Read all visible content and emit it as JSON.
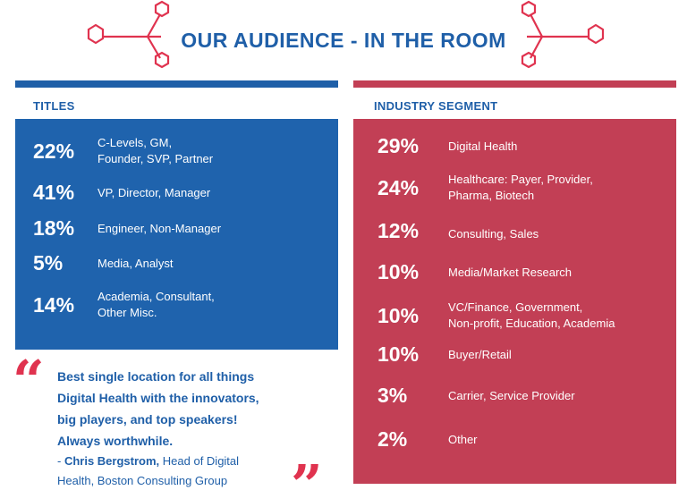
{
  "header": {
    "title": "OUR AUDIENCE - IN THE ROOM"
  },
  "colors": {
    "blue": "#1f63ad",
    "red": "#c23f55",
    "accent": "#e0334f"
  },
  "titles": {
    "label": "TITLES",
    "items": [
      {
        "pct": "22%",
        "line1": "C-Levels, GM,",
        "line2": "Founder, SVP, Partner"
      },
      {
        "pct": "41%",
        "line1": "VP, Director, Manager",
        "line2": ""
      },
      {
        "pct": "18%",
        "line1": "Engineer, Non-Manager",
        "line2": ""
      },
      {
        "pct": "5%",
        "line1": "Media, Analyst",
        "line2": ""
      },
      {
        "pct": "14%",
        "line1": "Academia, Consultant,",
        "line2": "Other Misc."
      }
    ]
  },
  "industry": {
    "label": "INDUSTRY SEGMENT",
    "items": [
      {
        "pct": "29%",
        "line1": "Digital Health",
        "line2": ""
      },
      {
        "pct": "24%",
        "line1": "Healthcare: Payer, Provider,",
        "line2": "Pharma, Biotech"
      },
      {
        "pct": "12%",
        "line1": "Consulting, Sales",
        "line2": ""
      },
      {
        "pct": "10%",
        "line1": "Media/Market Research",
        "line2": ""
      },
      {
        "pct": "10%",
        "line1": "VC/Finance, Government,",
        "line2": "Non-profit, Education, Academia"
      },
      {
        "pct": "10%",
        "line1": "Buyer/Retail",
        "line2": ""
      },
      {
        "pct": "3%",
        "line1": "Carrier, Service Provider",
        "line2": ""
      },
      {
        "pct": "2%",
        "line1": "Other",
        "line2": ""
      }
    ]
  },
  "quote": {
    "open_mark": "“",
    "close_mark": "”",
    "line1": "Best single location for all things",
    "line2": "Digital Health with the innovators,",
    "line3": "big players, and top speakers!",
    "line4": "Always worthwhile.",
    "author_prefix": "- ",
    "author_name": "Chris Bergstrom,",
    "author_role_1": " Head of Digital",
    "author_role_2": "Health, Boston Consulting Group"
  }
}
